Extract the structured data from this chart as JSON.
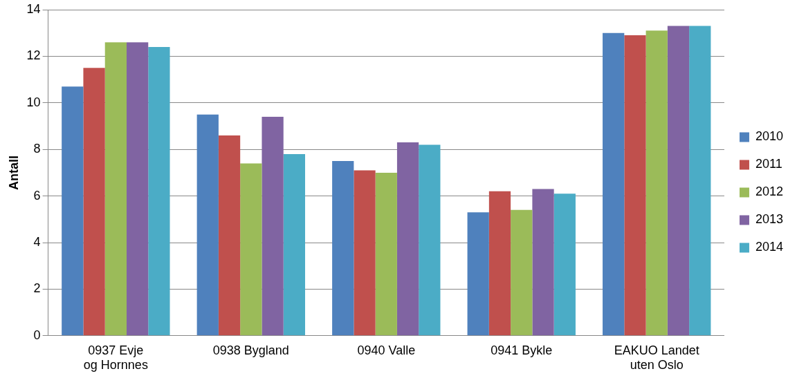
{
  "chart_data": {
    "type": "bar",
    "ylabel": "Antall",
    "categories": [
      "0937 Evje og Hornnes",
      "0938 Bygland",
      "0940 Valle",
      "0941 Bykle",
      "EAKUO Landet uten Oslo"
    ],
    "series": [
      {
        "name": "2010",
        "color": "#4f81bd",
        "values": [
          10.7,
          9.5,
          7.5,
          5.3,
          13.0
        ]
      },
      {
        "name": "2011",
        "color": "#c0504d",
        "values": [
          11.5,
          8.6,
          7.1,
          6.2,
          12.9
        ]
      },
      {
        "name": "2012",
        "color": "#9bbb59",
        "values": [
          12.6,
          7.4,
          7.0,
          5.4,
          13.1
        ]
      },
      {
        "name": "2013",
        "color": "#8064a2",
        "values": [
          12.6,
          9.4,
          8.3,
          6.3,
          13.3
        ]
      },
      {
        "name": "2014",
        "color": "#4bacc6",
        "values": [
          12.4,
          7.8,
          8.2,
          6.1,
          13.3
        ]
      }
    ],
    "ylim": [
      0,
      14
    ],
    "yticks": [
      0,
      2,
      4,
      6,
      8,
      10,
      12,
      14
    ],
    "grid": "y",
    "legend": "right"
  }
}
